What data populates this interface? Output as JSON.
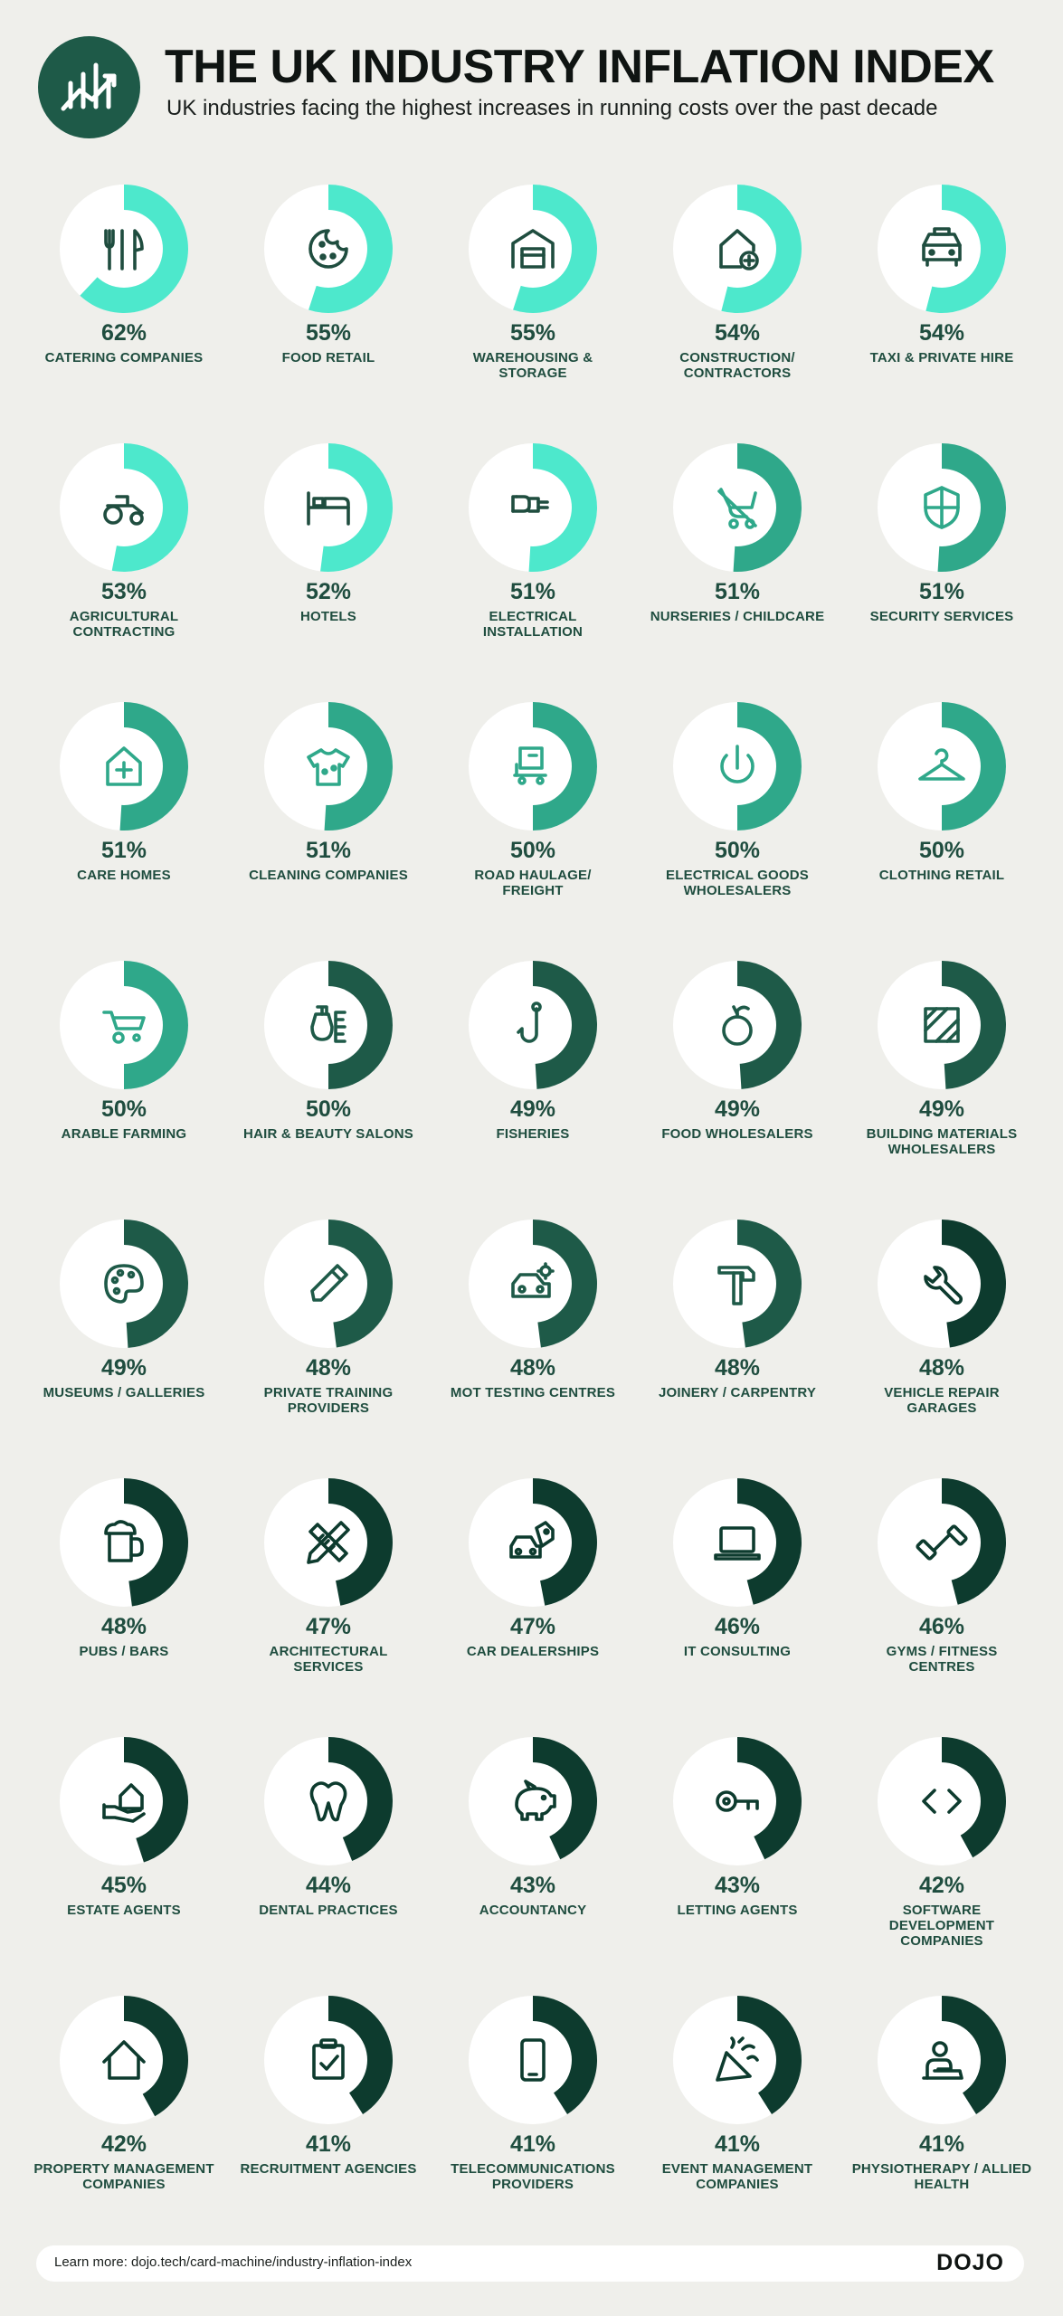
{
  "header": {
    "title": "THE UK INDUSTRY INFLATION INDEX",
    "subtitle": "UK industries facing the highest increases in running costs over the past decade"
  },
  "colors": {
    "background": "#efefeb",
    "tier_1": "#4de8cc",
    "tier_2": "#2fa88a",
    "tier_3": "#1e5a48",
    "tier_4": "#0d3b2e",
    "text": "#1f4d3f"
  },
  "chart_data": {
    "type": "pie",
    "chart_style": "donut grid",
    "title": "THE UK INDUSTRY INFLATION INDEX",
    "subtitle": "UK industries facing the highest increases in running costs over the past decade",
    "categories": [
      "CATERING COMPANIES",
      "FOOD RETAIL",
      "WAREHOUSING & STORAGE",
      "CONSTRUCTION/ CONTRACTORS",
      "TAXI & PRIVATE HIRE",
      "AGRICULTURAL CONTRACTING",
      "HOTELS",
      "ELECTRICAL INSTALLATION",
      "NURSERIES / CHILDCARE",
      "SECURITY SERVICES",
      "CARE HOMES",
      "CLEANING COMPANIES",
      "ROAD HAULAGE/ FREIGHT",
      "ELECTRICAL GOODS WHOLESALERS",
      "CLOTHING RETAIL",
      "ARABLE FARMING",
      "HAIR & BEAUTY SALONS",
      "FISHERIES",
      "FOOD WHOLESALERS",
      "BUILDING MATERIALS WHOLESALERS",
      "MUSEUMS / GALLERIES",
      "PRIVATE TRAINING PROVIDERS",
      "MOT TESTING CENTRES",
      "JOINERY / CARPENTRY",
      "VEHICLE REPAIR GARAGES",
      "PUBS / BARS",
      "ARCHITECTURAL SERVICES",
      "CAR DEALERSHIPS",
      "IT CONSULTING",
      "GYMS / FITNESS CENTRES",
      "ESTATE AGENTS",
      "DENTAL PRACTICES",
      "ACCOUNTANCY",
      "LETTING AGENTS",
      "SOFTWARE DEVELOPMENT COMPANIES",
      "PROPERTY MANAGEMENT COMPANIES",
      "RECRUITMENT AGENCIES",
      "TELECOMMUNICATIONS PROVIDERS",
      "EVENT MANAGEMENT COMPANIES",
      "PHYSIOTHERAPY / ALLIED HEALTH"
    ],
    "values": [
      62,
      55,
      55,
      54,
      54,
      53,
      52,
      51,
      51,
      51,
      51,
      51,
      50,
      50,
      50,
      50,
      50,
      49,
      49,
      49,
      49,
      48,
      48,
      48,
      48,
      48,
      47,
      47,
      46,
      46,
      45,
      44,
      43,
      43,
      42,
      42,
      41,
      41,
      41,
      41
    ],
    "unit": "%"
  },
  "items": [
    {
      "pct": "62%",
      "label": "CATERING COMPANIES",
      "value": 62,
      "color": "#4de8cc",
      "icon": "cutlery-icon"
    },
    {
      "pct": "55%",
      "label": "FOOD RETAIL",
      "value": 55,
      "color": "#4de8cc",
      "icon": "cookie-icon"
    },
    {
      "pct": "55%",
      "label": "WAREHOUSING & STORAGE",
      "value": 55,
      "color": "#4de8cc",
      "icon": "warehouse-icon"
    },
    {
      "pct": "54%",
      "label": "CONSTRUCTION/ CONTRACTORS",
      "value": 54,
      "color": "#4de8cc",
      "icon": "house-plus-icon"
    },
    {
      "pct": "54%",
      "label": "TAXI & PRIVATE HIRE",
      "value": 54,
      "color": "#4de8cc",
      "icon": "taxi-icon"
    },
    {
      "pct": "53%",
      "label": "AGRICULTURAL CONTRACTING",
      "value": 53,
      "color": "#4de8cc",
      "icon": "tractor-icon"
    },
    {
      "pct": "52%",
      "label": "HOTELS",
      "value": 52,
      "color": "#4de8cc",
      "icon": "bed-icon"
    },
    {
      "pct": "51%",
      "label": "ELECTRICAL INSTALLATION",
      "value": 51,
      "color": "#4de8cc",
      "icon": "plug-icon"
    },
    {
      "pct": "51%",
      "label": "NURSERIES / CHILDCARE",
      "value": 51,
      "color": "#2fa88a",
      "icon": "pram-icon"
    },
    {
      "pct": "51%",
      "label": "SECURITY SERVICES",
      "value": 51,
      "color": "#2fa88a",
      "icon": "shield-icon"
    },
    {
      "pct": "51%",
      "label": "CARE HOMES",
      "value": 51,
      "color": "#2fa88a",
      "icon": "medical-house-icon"
    },
    {
      "pct": "51%",
      "label": "CLEANING COMPANIES",
      "value": 51,
      "color": "#2fa88a",
      "icon": "shirt-icon"
    },
    {
      "pct": "50%",
      "label": "ROAD HAULAGE/ FREIGHT",
      "value": 50,
      "color": "#2fa88a",
      "icon": "trolley-icon"
    },
    {
      "pct": "50%",
      "label": "ELECTRICAL GOODS WHOLESALERS",
      "value": 50,
      "color": "#2fa88a",
      "icon": "power-icon"
    },
    {
      "pct": "50%",
      "label": "CLOTHING RETAIL",
      "value": 50,
      "color": "#2fa88a",
      "icon": "hanger-icon"
    },
    {
      "pct": "50%",
      "label": "ARABLE FARMING",
      "value": 50,
      "color": "#2fa88a",
      "icon": "wheelbarrow-icon"
    },
    {
      "pct": "50%",
      "label": "HAIR & BEAUTY SALONS",
      "value": 50,
      "color": "#1e5a48",
      "icon": "hairdryer-icon"
    },
    {
      "pct": "49%",
      "label": "FISHERIES",
      "value": 49,
      "color": "#1e5a48",
      "icon": "fishhook-icon"
    },
    {
      "pct": "49%",
      "label": "FOOD WHOLESALERS",
      "value": 49,
      "color": "#1e5a48",
      "icon": "apple-icon"
    },
    {
      "pct": "49%",
      "label": "BUILDING MATERIALS WHOLESALERS",
      "value": 49,
      "color": "#1e5a48",
      "icon": "materials-icon"
    },
    {
      "pct": "49%",
      "label": "MUSEUMS / GALLERIES",
      "value": 49,
      "color": "#1e5a48",
      "icon": "palette-icon"
    },
    {
      "pct": "48%",
      "label": "PRIVATE TRAINING PROVIDERS",
      "value": 48,
      "color": "#1e5a48",
      "icon": "pencil-icon"
    },
    {
      "pct": "48%",
      "label": "MOT TESTING CENTRES",
      "value": 48,
      "color": "#1e5a48",
      "icon": "car-gear-icon"
    },
    {
      "pct": "48%",
      "label": "JOINERY / CARPENTRY",
      "value": 48,
      "color": "#1e5a48",
      "icon": "hammer-icon"
    },
    {
      "pct": "48%",
      "label": "VEHICLE REPAIR GARAGES",
      "value": 48,
      "color": "#0d3b2e",
      "icon": "wrench-icon"
    },
    {
      "pct": "48%",
      "label": "PUBS / BARS",
      "value": 48,
      "color": "#0d3b2e",
      "icon": "beer-icon"
    },
    {
      "pct": "47%",
      "label": "ARCHITECTURAL SERVICES",
      "value": 47,
      "color": "#0d3b2e",
      "icon": "ruler-pencil-icon"
    },
    {
      "pct": "47%",
      "label": "CAR DEALERSHIPS",
      "value": 47,
      "color": "#0d3b2e",
      "icon": "car-tag-icon"
    },
    {
      "pct": "46%",
      "label": "IT CONSULTING",
      "value": 46,
      "color": "#0d3b2e",
      "icon": "laptop-icon"
    },
    {
      "pct": "46%",
      "label": "GYMS / FITNESS CENTRES",
      "value": 46,
      "color": "#0d3b2e",
      "icon": "dumbbell-icon"
    },
    {
      "pct": "45%",
      "label": "ESTATE AGENTS",
      "value": 45,
      "color": "#0d3b2e",
      "icon": "hand-house-icon"
    },
    {
      "pct": "44%",
      "label": "DENTAL PRACTICES",
      "value": 44,
      "color": "#0d3b2e",
      "icon": "tooth-icon"
    },
    {
      "pct": "43%",
      "label": "ACCOUNTANCY",
      "value": 43,
      "color": "#0d3b2e",
      "icon": "piggy-bank-icon"
    },
    {
      "pct": "43%",
      "label": "LETTING AGENTS",
      "value": 43,
      "color": "#0d3b2e",
      "icon": "key-icon"
    },
    {
      "pct": "42%",
      "label": "SOFTWARE DEVELOPMENT COMPANIES",
      "value": 42,
      "color": "#0d3b2e",
      "icon": "code-icon"
    },
    {
      "pct": "42%",
      "label": "PROPERTY MANAGEMENT COMPANIES",
      "value": 42,
      "color": "#0d3b2e",
      "icon": "house-icon"
    },
    {
      "pct": "41%",
      "label": "RECRUITMENT AGENCIES",
      "value": 41,
      "color": "#0d3b2e",
      "icon": "clipboard-check-icon"
    },
    {
      "pct": "41%",
      "label": "TELECOMMUNICATIONS PROVIDERS",
      "value": 41,
      "color": "#0d3b2e",
      "icon": "phone-icon"
    },
    {
      "pct": "41%",
      "label": "EVENT MANAGEMENT COMPANIES",
      "value": 41,
      "color": "#0d3b2e",
      "icon": "party-popper-icon"
    },
    {
      "pct": "41%",
      "label": "PHYSIOTHERAPY / ALLIED HEALTH",
      "value": 41,
      "color": "#0d3b2e",
      "icon": "physio-icon"
    }
  ],
  "footer": {
    "link_text": "Learn more: dojo.tech/card-machine/industry-inflation-index",
    "brand": "DOJO"
  }
}
